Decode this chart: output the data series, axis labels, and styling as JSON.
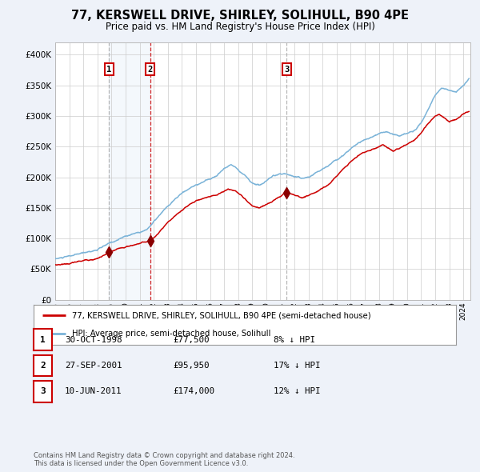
{
  "title": "77, KERSWELL DRIVE, SHIRLEY, SOLIHULL, B90 4PE",
  "subtitle": "Price paid vs. HM Land Registry's House Price Index (HPI)",
  "ylim": [
    0,
    420000
  ],
  "yticks": [
    0,
    50000,
    100000,
    150000,
    200000,
    250000,
    300000,
    350000,
    400000
  ],
  "ytick_labels": [
    "£0",
    "£50K",
    "£100K",
    "£150K",
    "£200K",
    "£250K",
    "£300K",
    "£350K",
    "£400K"
  ],
  "xlim_start": 1995.0,
  "xlim_end": 2024.5,
  "sale_dates": [
    1998.83,
    2001.74,
    2011.44
  ],
  "sale_prices": [
    77500,
    95950,
    174000
  ],
  "sale_labels": [
    "1",
    "2",
    "3"
  ],
  "sale_info": [
    {
      "label": "1",
      "date": "30-OCT-1998",
      "price": "£77,500",
      "hpi": "8% ↓ HPI"
    },
    {
      "label": "2",
      "date": "27-SEP-2001",
      "price": "£95,950",
      "hpi": "17% ↓ HPI"
    },
    {
      "label": "3",
      "date": "10-JUN-2011",
      "price": "£174,000",
      "hpi": "12% ↓ HPI"
    }
  ],
  "hpi_line_color": "#7ab3d8",
  "price_line_color": "#cc0000",
  "marker_color": "#8b0000",
  "shade_color": "#ddeaf7",
  "legend_label_price": "77, KERSWELL DRIVE, SHIRLEY, SOLIHULL, B90 4PE (semi-detached house)",
  "legend_label_hpi": "HPI: Average price, semi-detached house, Solihull",
  "footer": "Contains HM Land Registry data © Crown copyright and database right 2024.\nThis data is licensed under the Open Government Licence v3.0.",
  "background_color": "#eef2f9",
  "plot_bg_color": "#ffffff"
}
